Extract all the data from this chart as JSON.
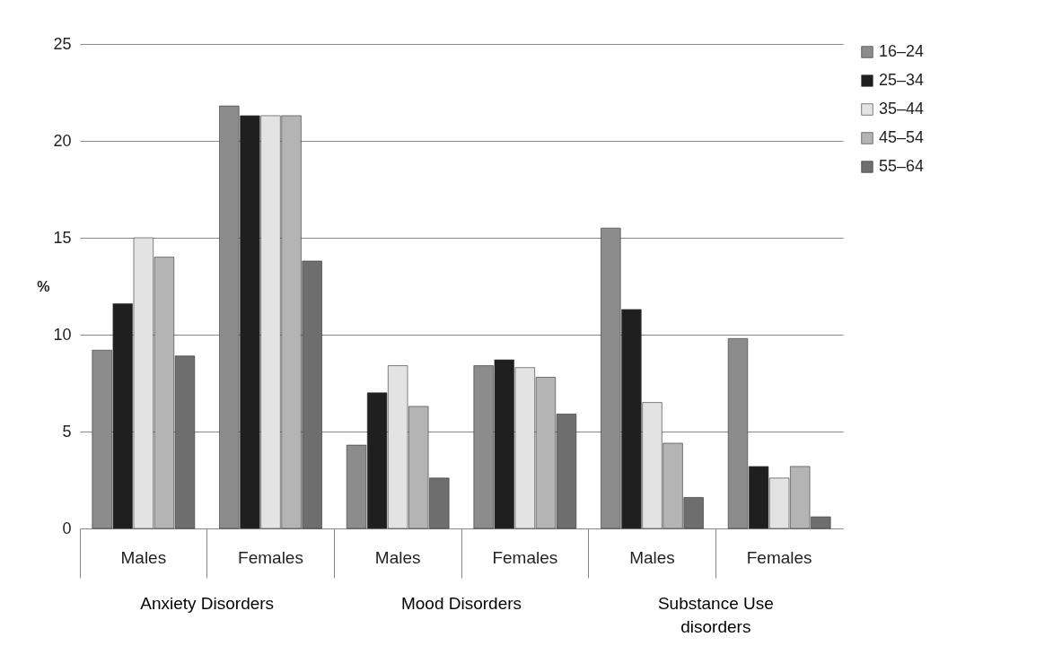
{
  "chart_data": {
    "type": "bar",
    "ylabel": "%",
    "categories": [
      "Males",
      "Females",
      "Males",
      "Females",
      "Males",
      "Females"
    ],
    "annotations": [
      "Anxiety Disorders",
      "Mood Disorders",
      "Substance Use disorders"
    ],
    "series": [
      {
        "name": "16–24",
        "color": "#8c8c8c",
        "values": [
          9.2,
          21.8,
          4.3,
          8.4,
          15.5,
          9.8
        ]
      },
      {
        "name": "25–34",
        "color": "#1f1f1f",
        "values": [
          11.6,
          21.3,
          7.0,
          8.7,
          11.3,
          3.2
        ]
      },
      {
        "name": "35–44",
        "color": "#e3e3e3",
        "values": [
          15.0,
          21.3,
          8.4,
          8.3,
          6.5,
          2.6
        ]
      },
      {
        "name": "45–54",
        "color": "#b4b4b4",
        "values": [
          14.0,
          21.3,
          6.3,
          7.8,
          4.4,
          3.2
        ]
      },
      {
        "name": "55–64",
        "color": "#6e6e6e",
        "values": [
          8.9,
          13.8,
          2.6,
          5.9,
          1.6,
          0.6
        ]
      }
    ],
    "ylim": [
      0,
      25
    ],
    "yticks": [
      0,
      5,
      10,
      15,
      20,
      25
    ],
    "grid": "y",
    "legend": "right"
  }
}
